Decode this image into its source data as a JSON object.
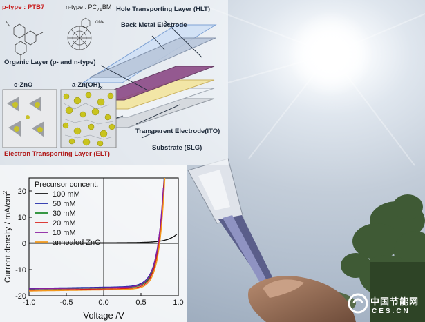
{
  "labels": {
    "ptype_prefix": "p-type : ",
    "ptype_name": "PTB7",
    "ntype": "n-type : PC",
    "ntype_sub": "71",
    "ntype_suffix": "BM",
    "ome": "OMe",
    "hlt": "Hole Transporting Layer (HLT)",
    "back_metal": "Back Metal Electrode",
    "organic": "Organic Layer (p- and n-type)",
    "czno": "c-ZnO",
    "azn": "a-Zn(OH)",
    "azn_sub": "x",
    "ito": "Transparent Electrode(ITO)",
    "substrate": "Substrate (SLG)",
    "elt": "Electron Transporting Layer (ELT)"
  },
  "colors": {
    "ptype_red": "#c81e1e",
    "elt_red": "#b01818",
    "hlt_blue": "#7eaee8",
    "organic_purple": "#7a3a7a",
    "ito_yellow": "#f2e6a6",
    "substrate_grey": "#d6dadf"
  },
  "chart_data": {
    "type": "line",
    "title": "",
    "xlabel": "Voltage /V",
    "ylabel": "Current density / mA/cm²",
    "ylabel_main": "Current density / mA/cm",
    "ylabel_sup": "2",
    "xlim": [
      -1.0,
      1.0
    ],
    "ylim": [
      -20,
      25
    ],
    "xticks": [
      "-1.0",
      "-0.5",
      "0.0",
      "0.5",
      "1.0"
    ],
    "yticks": [
      "-20",
      "-10",
      "0",
      "10",
      "20"
    ],
    "legend_title": "Precursor concent.",
    "legend_position": "top-left",
    "series": [
      {
        "name": "100 mM",
        "color": "#111111",
        "dark": true,
        "jsc": 0,
        "voc": 0,
        "k": 0
      },
      {
        "name": "50 mM",
        "color": "#1f2aa8",
        "dark": false,
        "jsc": -16.4,
        "voc": 0.73,
        "k": 11.5
      },
      {
        "name": "30 mM",
        "color": "#1c8a2a",
        "dark": false,
        "jsc": -16.7,
        "voc": 0.74,
        "k": 12.0
      },
      {
        "name": "20 mM",
        "color": "#d8231c",
        "dark": false,
        "jsc": -17.1,
        "voc": 0.74,
        "k": 12.5
      },
      {
        "name": "10 mM",
        "color": "#8a1fa0",
        "dark": false,
        "jsc": -16.6,
        "voc": 0.73,
        "k": 11.8
      },
      {
        "name": "annealed ZnO",
        "color": "#f39a1c",
        "dark": false,
        "jsc": -17.4,
        "voc": 0.75,
        "k": 12.8
      }
    ]
  },
  "watermark": {
    "cn": "中国节能网",
    "url": "CES.CN"
  }
}
